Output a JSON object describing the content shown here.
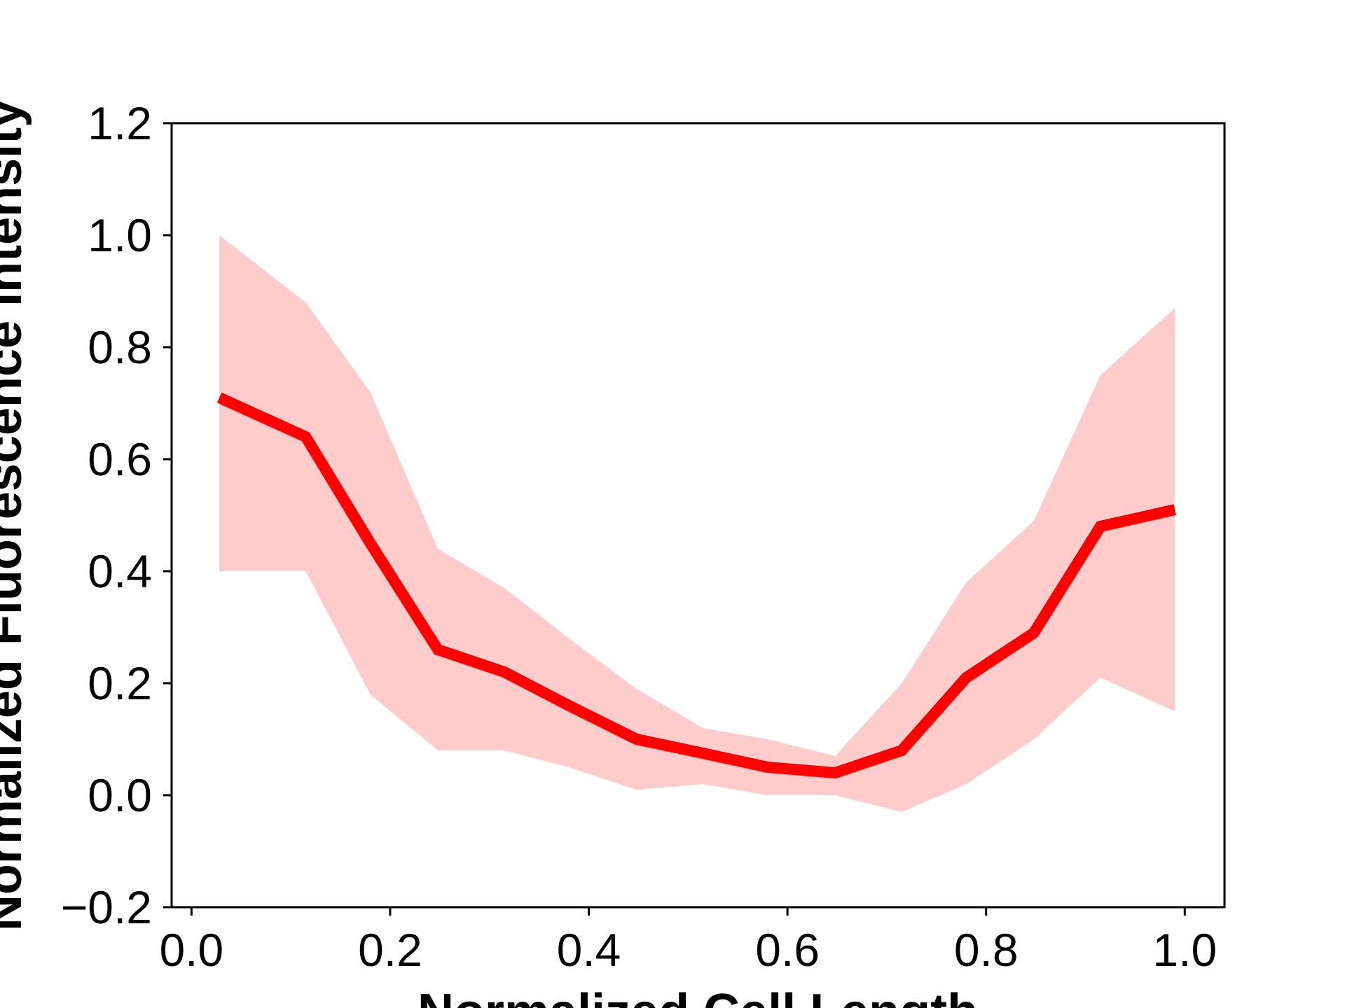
{
  "chart_data": {
    "type": "line",
    "title": "",
    "xlabel": "Normalized Cell Length",
    "ylabel": "Normalized Fluorescence Intensity",
    "xlim": [
      -0.02,
      1.04
    ],
    "ylim": [
      -0.2,
      1.2
    ],
    "grid": false,
    "x_ticks": [
      {
        "value": 0.0,
        "label": "0.0"
      },
      {
        "value": 0.2,
        "label": "0.2"
      },
      {
        "value": 0.4,
        "label": "0.4"
      },
      {
        "value": 0.6,
        "label": "0.6"
      },
      {
        "value": 0.8,
        "label": "0.8"
      },
      {
        "value": 1.0,
        "label": "1.0"
      }
    ],
    "y_ticks": [
      {
        "value": -0.2,
        "label": "−0.2"
      },
      {
        "value": 0.0,
        "label": "0.0"
      },
      {
        "value": 0.2,
        "label": "0.2"
      },
      {
        "value": 0.4,
        "label": "0.4"
      },
      {
        "value": 0.6,
        "label": "0.6"
      },
      {
        "value": 0.8,
        "label": "0.8"
      },
      {
        "value": 1.0,
        "label": "1.0"
      },
      {
        "value": 1.2,
        "label": "1.2"
      }
    ],
    "series": [
      {
        "color": "#ff0000",
        "band_color": "#ffcccc",
        "x": [
          0.028,
          0.115,
          0.18,
          0.248,
          0.315,
          0.38,
          0.448,
          0.515,
          0.58,
          0.648,
          0.715,
          0.78,
          0.848,
          0.915,
          0.99
        ],
        "values": [
          0.71,
          0.64,
          0.45,
          0.26,
          0.22,
          0.16,
          0.1,
          0.075,
          0.05,
          0.04,
          0.08,
          0.21,
          0.29,
          0.48,
          0.51
        ],
        "upper": [
          1.0,
          0.88,
          0.72,
          0.44,
          0.37,
          0.28,
          0.19,
          0.12,
          0.1,
          0.07,
          0.2,
          0.38,
          0.49,
          0.75,
          0.87
        ],
        "lower": [
          0.4,
          0.4,
          0.18,
          0.08,
          0.08,
          0.05,
          0.01,
          0.02,
          0.0,
          0.0,
          -0.03,
          0.02,
          0.1,
          0.21,
          0.15
        ]
      }
    ]
  }
}
